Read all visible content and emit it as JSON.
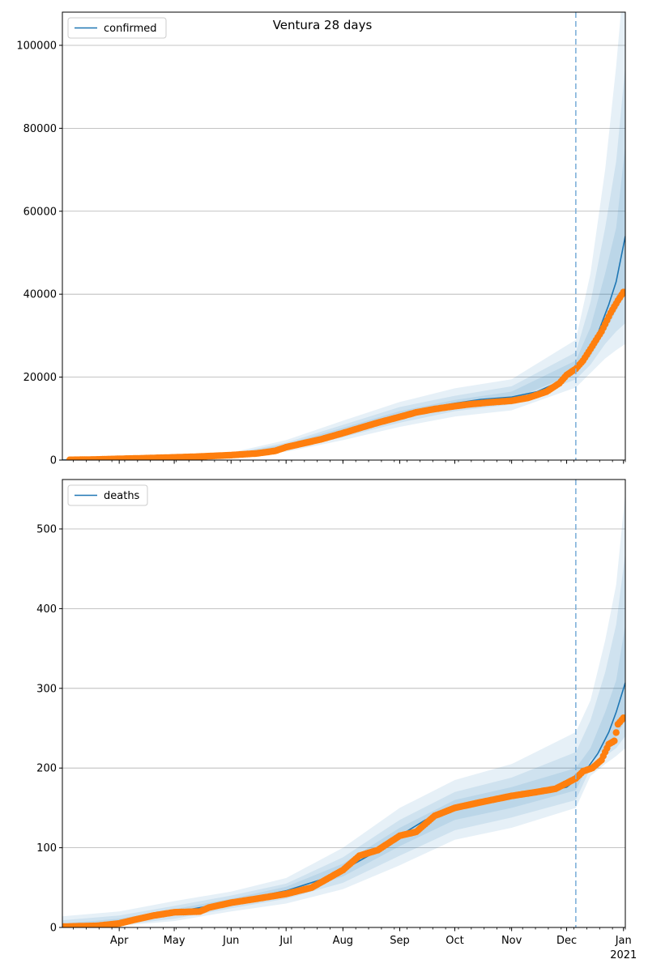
{
  "figure": {
    "title": "Ventura 28 days"
  },
  "colors": {
    "model": "#1f77b4",
    "observed": "#ff7f0e",
    "band": "#1f77b4",
    "grid": "#b0b0b0",
    "forecast_line": "#7fb1d9"
  },
  "chart_data": [
    {
      "type": "line",
      "panel": "top",
      "title": "Ventura 28 days",
      "legend": {
        "entries": [
          "confirmed"
        ],
        "placement": "top-left"
      },
      "grid": "horizontal",
      "x_range": [
        "2020-03-01",
        "2021-01-02"
      ],
      "ylim": [
        0,
        108000
      ],
      "y_ticks": [
        0,
        20000,
        40000,
        60000,
        80000,
        100000
      ],
      "y_tick_labels": [
        "0",
        "20000",
        "40000",
        "60000",
        "80000",
        "100000"
      ],
      "forecast_start": "2020-12-06",
      "model_series": {
        "name": "confirmed",
        "x": [
          "2020-03-01",
          "2020-04-01",
          "2020-05-01",
          "2020-06-01",
          "2020-06-20",
          "2020-07-01",
          "2020-07-15",
          "2020-08-01",
          "2020-08-15",
          "2020-09-01",
          "2020-09-15",
          "2020-10-01",
          "2020-10-15",
          "2020-11-01",
          "2020-11-15",
          "2020-11-25",
          "2020-12-01",
          "2020-12-06",
          "2020-12-12",
          "2020-12-18",
          "2020-12-24",
          "2020-12-28",
          "2021-01-02"
        ],
        "values": [
          0,
          300,
          600,
          1200,
          2000,
          3200,
          4500,
          7000,
          8800,
          10800,
          12500,
          13700,
          14600,
          15200,
          16500,
          18500,
          20500,
          22500,
          25500,
          30500,
          37500,
          43000,
          54000
        ]
      },
      "bands": [
        {
          "x": [
            "2020-03-01",
            "2020-06-01",
            "2020-07-01",
            "2020-08-01",
            "2020-09-01",
            "2020-10-01",
            "2020-11-01",
            "2020-12-06",
            "2020-12-14",
            "2020-12-22",
            "2020-12-28",
            "2021-01-02"
          ],
          "upper": [
            300,
            1800,
            4800,
            9500,
            14000,
            17300,
            19500,
            29000,
            45000,
            70000,
            95000,
            120000
          ],
          "lower": [
            0,
            800,
            2000,
            4800,
            8000,
            10500,
            12000,
            17500,
            21000,
            24500,
            26500,
            28000
          ]
        },
        {
          "x": [
            "2020-03-01",
            "2020-06-01",
            "2020-07-01",
            "2020-08-01",
            "2020-09-01",
            "2020-10-01",
            "2020-11-01",
            "2020-12-06",
            "2020-12-14",
            "2020-12-22",
            "2020-12-28",
            "2021-01-02"
          ],
          "upper": [
            200,
            1500,
            4200,
            8500,
            12800,
            15500,
            17800,
            26000,
            38000,
            56000,
            72000,
            95000
          ],
          "lower": [
            0,
            950,
            2400,
            5500,
            9000,
            11800,
            13400,
            19500,
            23000,
            28000,
            31000,
            33000
          ]
        },
        {
          "x": [
            "2020-03-01",
            "2020-06-01",
            "2020-07-01",
            "2020-08-01",
            "2020-09-01",
            "2020-10-01",
            "2020-11-01",
            "2020-12-06",
            "2020-12-14",
            "2020-12-22",
            "2020-12-28",
            "2021-01-02"
          ],
          "upper": [
            100,
            1350,
            3800,
            7800,
            11800,
            14500,
            16500,
            24000,
            32000,
            45000,
            56000,
            76000
          ],
          "lower": [
            0,
            1050,
            2800,
            6200,
            9800,
            12800,
            14500,
            21000,
            25000,
            31000,
            36000,
            40000
          ]
        }
      ],
      "observed_series": {
        "x": [
          "2020-03-05",
          "2020-03-20",
          "2020-04-01",
          "2020-04-15",
          "2020-05-01",
          "2020-05-15",
          "2020-06-01",
          "2020-06-15",
          "2020-06-25",
          "2020-07-01",
          "2020-07-10",
          "2020-07-20",
          "2020-08-01",
          "2020-08-10",
          "2020-08-20",
          "2020-09-01",
          "2020-09-10",
          "2020-09-20",
          "2020-10-01",
          "2020-10-10",
          "2020-10-20",
          "2020-11-01",
          "2020-11-10",
          "2020-11-20",
          "2020-11-27",
          "2020-12-01",
          "2020-12-06",
          "2020-12-10",
          "2020-12-15",
          "2020-12-20",
          "2020-12-25",
          "2020-12-29",
          "2021-01-01"
        ],
        "values": [
          50,
          150,
          300,
          450,
          650,
          850,
          1200,
          1600,
          2200,
          3100,
          4000,
          5000,
          6500,
          7700,
          9000,
          10400,
          11500,
          12300,
          13000,
          13500,
          13900,
          14300,
          15000,
          16500,
          18500,
          20500,
          22000,
          24000,
          27500,
          31000,
          35500,
          38500,
          40500
        ]
      }
    },
    {
      "type": "line",
      "panel": "bottom",
      "legend": {
        "entries": [
          "deaths"
        ],
        "placement": "top-left"
      },
      "grid": "horizontal",
      "x_range": [
        "2020-03-01",
        "2021-01-02"
      ],
      "x_ticks": [
        "2020-04-01",
        "2020-05-01",
        "2020-06-01",
        "2020-07-01",
        "2020-08-01",
        "2020-09-01",
        "2020-10-01",
        "2020-11-01",
        "2020-12-01",
        "2021-01-01"
      ],
      "x_tick_labels": [
        "Apr",
        "May",
        "Jun",
        "Jul",
        "Aug",
        "Sep",
        "Oct",
        "Nov",
        "Dec",
        "Jan"
      ],
      "x_year_label": "2021",
      "ylim": [
        0,
        562
      ],
      "y_ticks": [
        0,
        100,
        200,
        300,
        400,
        500
      ],
      "y_tick_labels": [
        "0",
        "100",
        "200",
        "300",
        "400",
        "500"
      ],
      "forecast_start": "2020-12-06",
      "model_series": {
        "name": "deaths",
        "x": [
          "2020-03-01",
          "2020-04-01",
          "2020-05-01",
          "2020-06-01",
          "2020-07-01",
          "2020-07-20",
          "2020-08-01",
          "2020-08-15",
          "2020-09-01",
          "2020-09-15",
          "2020-10-01",
          "2020-10-15",
          "2020-11-01",
          "2020-11-15",
          "2020-12-01",
          "2020-12-06",
          "2020-12-12",
          "2020-12-18",
          "2020-12-24",
          "2020-12-28",
          "2021-01-02"
        ],
        "values": [
          0,
          7,
          19,
          32,
          46,
          60,
          72,
          90,
          115,
          135,
          148,
          155,
          162,
          168,
          176,
          185,
          199,
          218,
          245,
          270,
          307
        ]
      },
      "bands": [
        {
          "x": [
            "2020-03-01",
            "2020-04-01",
            "2020-05-01",
            "2020-06-01",
            "2020-07-01",
            "2020-08-01",
            "2020-09-01",
            "2020-10-01",
            "2020-11-01",
            "2020-12-06",
            "2020-12-14",
            "2020-12-22",
            "2020-12-28",
            "2021-01-02"
          ],
          "upper": [
            14,
            20,
            33,
            45,
            62,
            100,
            150,
            185,
            205,
            245,
            285,
            360,
            430,
            545
          ],
          "lower": [
            0,
            2,
            8,
            20,
            30,
            48,
            78,
            110,
            125,
            150,
            190,
            205,
            215,
            225
          ]
        },
        {
          "x": [
            "2020-03-01",
            "2020-04-01",
            "2020-05-01",
            "2020-06-01",
            "2020-07-01",
            "2020-08-01",
            "2020-09-01",
            "2020-10-01",
            "2020-11-01",
            "2020-12-06",
            "2020-12-14",
            "2020-12-22",
            "2020-12-28",
            "2021-01-02"
          ],
          "upper": [
            9,
            15,
            27,
            40,
            55,
            88,
            135,
            170,
            188,
            220,
            260,
            320,
            380,
            470
          ],
          "lower": [
            0,
            3,
            11,
            24,
            36,
            56,
            90,
            122,
            138,
            160,
            200,
            215,
            225,
            240
          ]
        },
        {
          "x": [
            "2020-03-01",
            "2020-04-01",
            "2020-05-01",
            "2020-06-01",
            "2020-07-01",
            "2020-08-01",
            "2020-09-01",
            "2020-10-01",
            "2020-11-01",
            "2020-12-06",
            "2020-12-14",
            "2020-12-22",
            "2020-12-28",
            "2021-01-02"
          ],
          "upper": [
            5,
            11,
            23,
            36,
            51,
            80,
            125,
            160,
            176,
            200,
            225,
            270,
            310,
            380
          ],
          "lower": [
            0,
            4,
            15,
            28,
            41,
            64,
            102,
            135,
            150,
            172,
            210,
            225,
            240,
            260
          ]
        }
      ],
      "observed_series": {
        "x": [
          "2020-03-01",
          "2020-03-20",
          "2020-04-01",
          "2020-04-10",
          "2020-04-20",
          "2020-05-01",
          "2020-05-15",
          "2020-05-20",
          "2020-06-01",
          "2020-06-15",
          "2020-07-01",
          "2020-07-15",
          "2020-08-01",
          "2020-08-10",
          "2020-08-20",
          "2020-09-01",
          "2020-09-10",
          "2020-09-20",
          "2020-10-01",
          "2020-10-15",
          "2020-11-01",
          "2020-11-15",
          "2020-11-25",
          "2020-12-01",
          "2020-12-06",
          "2020-12-10",
          "2020-12-15",
          "2020-12-20",
          "2020-12-24",
          "2020-12-27",
          "2020-12-29",
          "2021-01-01"
        ],
        "values": [
          1,
          2,
          5,
          10,
          15,
          19,
          20,
          25,
          31,
          36,
          42,
          50,
          72,
          90,
          97,
          115,
          120,
          140,
          150,
          157,
          165,
          170,
          174,
          181,
          187,
          196,
          200,
          210,
          230,
          234,
          255,
          263
        ]
      }
    }
  ]
}
